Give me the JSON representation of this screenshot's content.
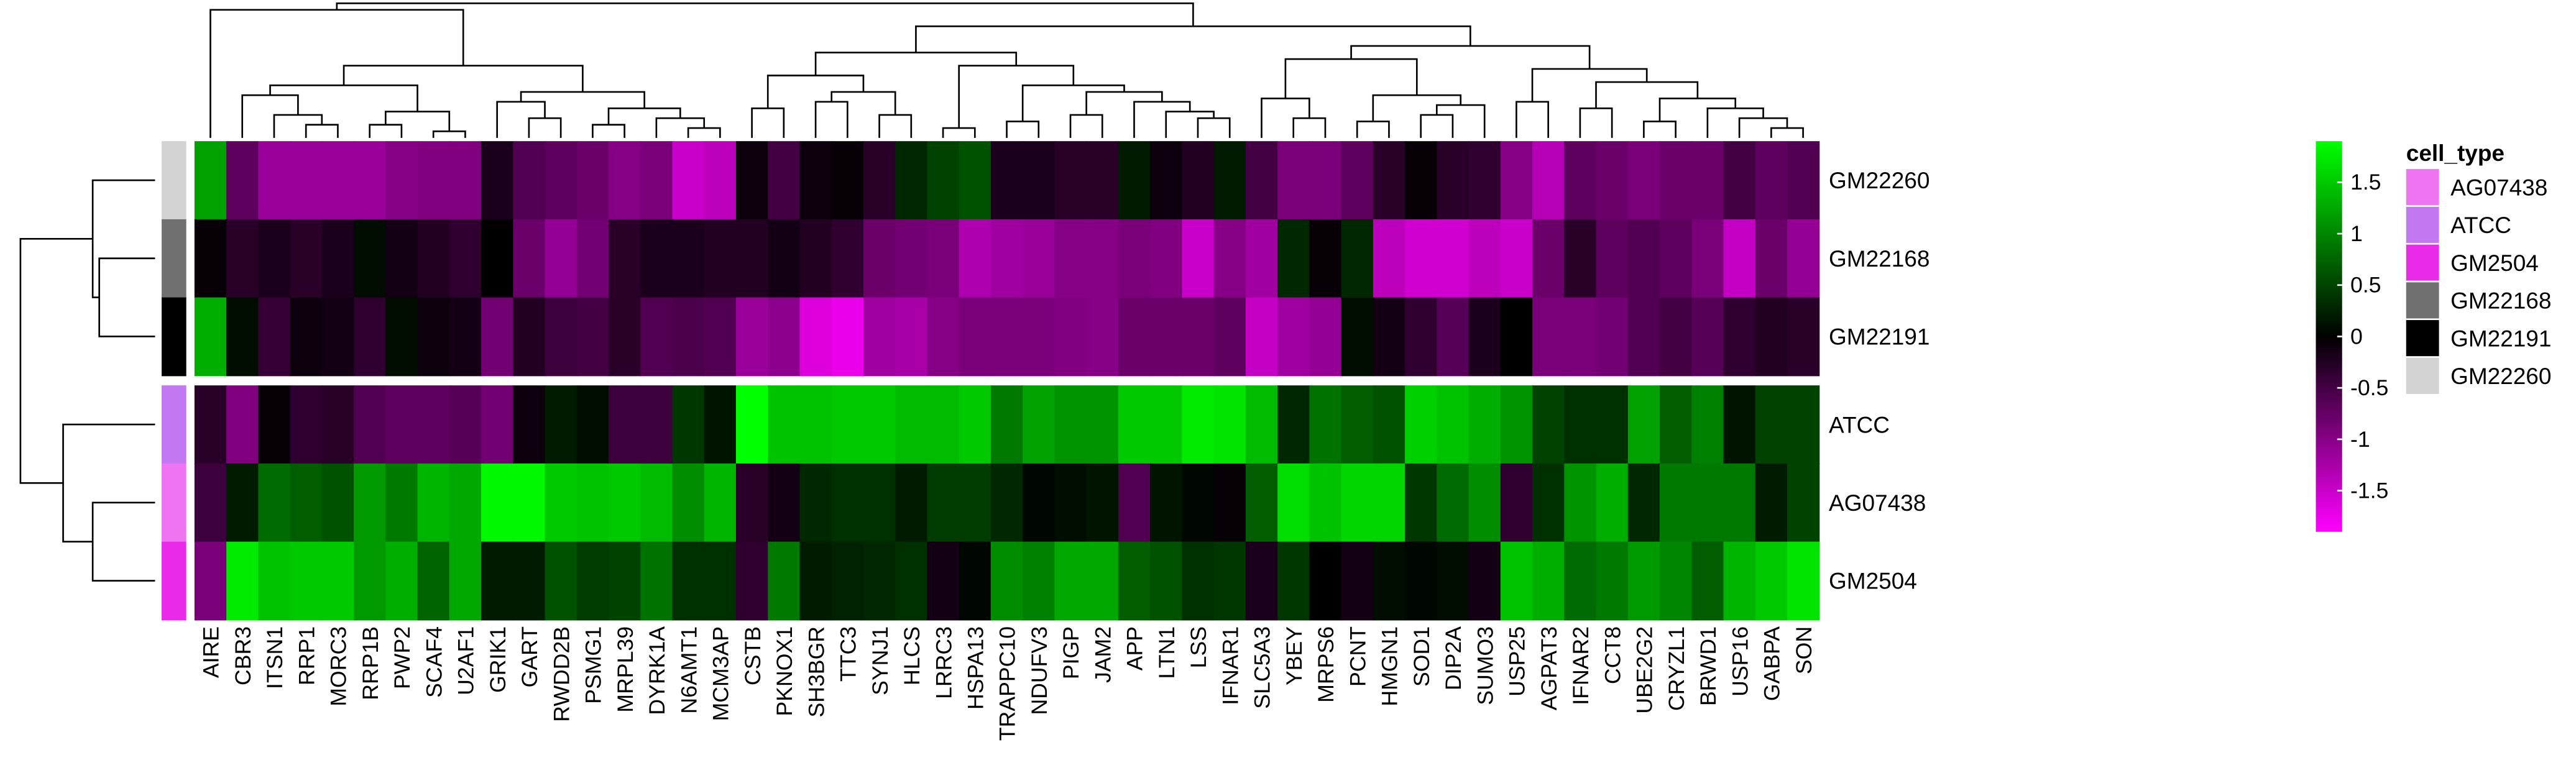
{
  "chart_data": {
    "type": "heatmap",
    "colors": {
      "low": "#ff00ff",
      "mid": "#000000",
      "high": "#00ff00"
    },
    "color_range": [
      -1.9,
      1.9
    ],
    "color_ticks": [
      "1.5",
      "1",
      "0.5",
      "0",
      "-0.5",
      "-1",
      "-1.5"
    ],
    "columns": [
      "AIRE",
      "CBR3",
      "ITSN1",
      "RRP1",
      "MORC3",
      "RRP1B",
      "PWP2",
      "SCAF4",
      "U2AF1",
      "GRIK1",
      "GART",
      "RWDD2B",
      "PSMG1",
      "MRPL39",
      "DYRK1A",
      "N6AMT1",
      "MCM3AP",
      "CSTB",
      "PKNOX1",
      "SH3BGR",
      "TTC3",
      "SYNJ1",
      "HLCS",
      "LRRC3",
      "HSPA13",
      "TRAPPC10",
      "NDUFV3",
      "PIGP",
      "JAM2",
      "APP",
      "LTN1",
      "LSS",
      "IFNAR1",
      "SLC5A3",
      "YBEY",
      "MRPS6",
      "PCNT",
      "HMGN1",
      "SOD1",
      "DIP2A",
      "SUMO3",
      "USP25",
      "AGPAT3",
      "IFNAR2",
      "CCT8",
      "UBE2G2",
      "CRYZL1",
      "BRWD1",
      "USP16",
      "GABPA",
      "SON"
    ],
    "rows": [
      {
        "name": "GM22260",
        "group": 0,
        "values": [
          1.2,
          -0.7,
          -1.15,
          -1.15,
          -1.15,
          -1.15,
          -1.0,
          -0.95,
          -0.95,
          -0.2,
          -0.6,
          -0.7,
          -0.8,
          -1.0,
          -0.9,
          -1.5,
          -1.4,
          -0.1,
          -0.5,
          -0.1,
          -0.05,
          -0.3,
          0.3,
          0.5,
          0.6,
          -0.2,
          -0.2,
          -0.3,
          -0.3,
          0.2,
          -0.1,
          -0.25,
          0.2,
          -0.5,
          -0.9,
          -0.9,
          -0.7,
          -0.3,
          -0.05,
          -0.3,
          -0.35,
          -1.0,
          -1.35,
          -0.7,
          -0.8,
          -0.9,
          -0.8,
          -0.8,
          -0.5,
          -0.7,
          -0.6
        ]
      },
      {
        "name": "GM22168",
        "group": 0,
        "values": [
          -0.05,
          -0.3,
          -0.2,
          -0.3,
          -0.2,
          0.1,
          -0.15,
          -0.25,
          -0.35,
          0.0,
          -0.8,
          -1.1,
          -0.85,
          -0.3,
          -0.2,
          -0.2,
          -0.25,
          -0.25,
          -0.15,
          -0.25,
          -0.35,
          -0.8,
          -0.85,
          -0.9,
          -1.3,
          -1.2,
          -1.15,
          -1.0,
          -1.0,
          -0.9,
          -0.95,
          -1.5,
          -1.0,
          -1.2,
          0.3,
          -0.05,
          0.3,
          -1.4,
          -1.55,
          -1.55,
          -1.4,
          -1.5,
          -0.8,
          -0.3,
          -0.7,
          -0.6,
          -0.7,
          -0.9,
          -1.45,
          -0.8,
          -1.1
        ]
      },
      {
        "name": "GM22191",
        "group": 0,
        "values": [
          1.3,
          0.1,
          -0.4,
          -0.1,
          -0.15,
          -0.35,
          0.1,
          -0.1,
          -0.15,
          -0.85,
          -0.25,
          -0.45,
          -0.5,
          -0.3,
          -0.6,
          -0.55,
          -0.6,
          -1.15,
          -1.05,
          -1.65,
          -1.75,
          -1.2,
          -1.25,
          -1.0,
          -0.9,
          -0.9,
          -0.9,
          -0.95,
          -1.0,
          -0.8,
          -0.8,
          -0.8,
          -0.7,
          -1.45,
          -1.2,
          -1.1,
          0.1,
          -0.15,
          -0.35,
          -0.65,
          -0.2,
          0.0,
          -0.9,
          -0.9,
          -0.85,
          -0.6,
          -0.5,
          -0.65,
          -0.35,
          -0.25,
          -0.3
        ]
      },
      {
        "name": "ATCC",
        "group": 1,
        "values": [
          -0.3,
          -0.95,
          -0.05,
          -0.35,
          -0.3,
          -0.6,
          -0.7,
          -0.7,
          -0.65,
          -0.85,
          -0.1,
          0.2,
          0.1,
          -0.45,
          -0.45,
          0.4,
          0.15,
          1.9,
          1.45,
          1.45,
          1.5,
          1.5,
          1.4,
          1.4,
          1.5,
          0.9,
          1.2,
          1.1,
          1.1,
          1.5,
          1.5,
          1.75,
          1.7,
          1.4,
          0.3,
          0.85,
          0.7,
          0.6,
          1.55,
          1.45,
          1.3,
          1.1,
          0.5,
          0.35,
          0.35,
          1.2,
          0.7,
          0.95,
          0.15,
          0.5,
          0.5
        ]
      },
      {
        "name": "AG07438",
        "group": 1,
        "values": [
          -0.45,
          0.2,
          0.8,
          0.7,
          0.6,
          1.15,
          0.9,
          1.35,
          1.25,
          1.85,
          1.85,
          1.5,
          1.45,
          1.5,
          1.4,
          1.05,
          1.35,
          -0.3,
          -0.15,
          0.3,
          0.35,
          0.35,
          0.2,
          0.45,
          0.45,
          0.3,
          0.05,
          0.1,
          0.15,
          -0.6,
          0.15,
          0.05,
          -0.05,
          0.7,
          1.65,
          1.45,
          1.6,
          1.6,
          0.4,
          0.8,
          1.05,
          -0.35,
          0.35,
          1.1,
          1.3,
          0.3,
          0.9,
          0.9,
          0.9,
          0.2,
          0.5
        ]
      },
      {
        "name": "GM2504",
        "group": 1,
        "values": [
          -0.9,
          1.75,
          1.45,
          1.5,
          1.5,
          1.15,
          1.3,
          0.75,
          1.25,
          0.2,
          0.2,
          0.6,
          0.45,
          0.5,
          0.85,
          0.35,
          0.35,
          -0.35,
          0.9,
          0.2,
          0.25,
          0.3,
          0.35,
          -0.15,
          0.05,
          1.05,
          0.95,
          1.25,
          1.25,
          0.7,
          0.6,
          0.35,
          0.4,
          -0.2,
          0.4,
          0.0,
          -0.15,
          0.1,
          0.05,
          0.1,
          -0.15,
          1.45,
          1.3,
          0.8,
          0.9,
          1.15,
          1.0,
          0.7,
          1.35,
          1.5,
          1.7
        ]
      }
    ],
    "annotation": {
      "title": "cell_type",
      "entries": [
        {
          "label": "AG07438",
          "color": "#ee74f1"
        },
        {
          "label": "ATCC",
          "color": "#c278f1"
        },
        {
          "label": "GM2504",
          "color": "#e92ae9"
        },
        {
          "label": "GM22168",
          "color": "#707070"
        },
        {
          "label": "GM22191",
          "color": "#000000"
        },
        {
          "label": "GM22260",
          "color": "#d3d3d3"
        }
      ],
      "row_colors": [
        "#d3d3d3",
        "#707070",
        "#000000",
        "#c278f1",
        "#ee74f1",
        "#e92ae9"
      ]
    }
  }
}
